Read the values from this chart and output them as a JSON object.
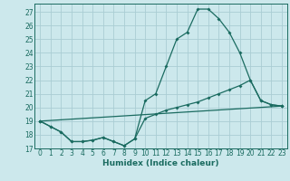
{
  "title": "",
  "xlabel": "Humidex (Indice chaleur)",
  "background_color": "#cce8ec",
  "grid_color": "#aacdd4",
  "line_color": "#1a6b60",
  "xlim": [
    -0.5,
    23.5
  ],
  "ylim": [
    17,
    27.6
  ],
  "yticks": [
    17,
    18,
    19,
    20,
    21,
    22,
    23,
    24,
    25,
    26,
    27
  ],
  "xticks": [
    0,
    1,
    2,
    3,
    4,
    5,
    6,
    7,
    8,
    9,
    10,
    11,
    12,
    13,
    14,
    15,
    16,
    17,
    18,
    19,
    20,
    21,
    22,
    23
  ],
  "line1_x": [
    0,
    1,
    2,
    3,
    4,
    5,
    6,
    7,
    8,
    9,
    10,
    11,
    12,
    13,
    14,
    15,
    16,
    17,
    18,
    19,
    20,
    21,
    22,
    23
  ],
  "line1_y": [
    19.0,
    18.6,
    18.2,
    17.5,
    17.5,
    17.6,
    17.8,
    17.5,
    17.2,
    17.7,
    20.5,
    21.0,
    23.0,
    25.0,
    25.5,
    27.2,
    27.2,
    26.5,
    25.5,
    24.0,
    22.0,
    20.5,
    20.2,
    20.1
  ],
  "line2_x": [
    0,
    1,
    2,
    3,
    4,
    5,
    6,
    7,
    8,
    9,
    10,
    11,
    12,
    13,
    14,
    15,
    16,
    17,
    18,
    19,
    20,
    21,
    22,
    23
  ],
  "line2_y": [
    19.0,
    18.6,
    18.2,
    17.5,
    17.5,
    17.6,
    17.8,
    17.5,
    17.2,
    17.7,
    19.2,
    19.5,
    19.8,
    20.0,
    20.2,
    20.4,
    20.7,
    21.0,
    21.3,
    21.6,
    22.0,
    20.5,
    20.2,
    20.1
  ],
  "line3_x": [
    0,
    23
  ],
  "line3_y": [
    19.0,
    20.1
  ],
  "marker_size": 2.0,
  "line_width": 0.9,
  "tick_fontsize": 5.5,
  "xlabel_fontsize": 6.5
}
